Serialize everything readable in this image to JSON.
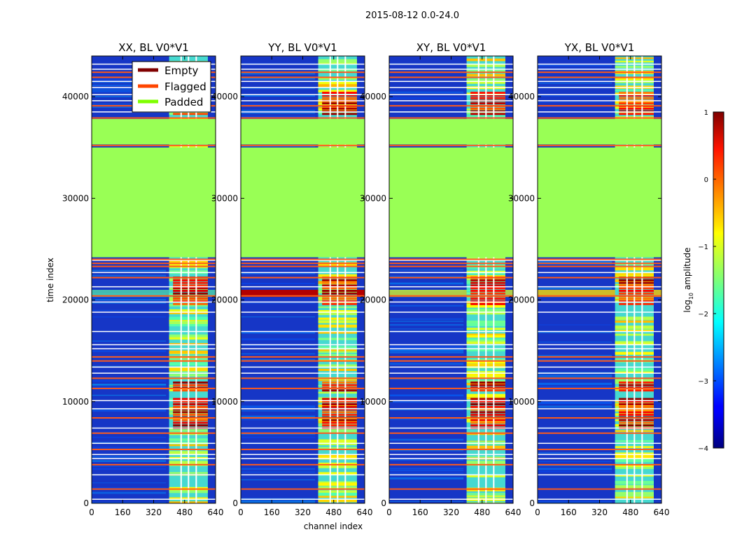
{
  "figure_title": "2015-08-12 0.0-24.0",
  "colors": {
    "background_blue": "#1636c6",
    "padded": "#99ff55",
    "flagged": "#ff5a1a",
    "empty": "#800000",
    "legend_padded_line": "#7fff00"
  },
  "legend": {
    "entries": [
      {
        "label": "Empty",
        "color": "#800000"
      },
      {
        "label": "Flagged",
        "color": "#ff4500"
      },
      {
        "label": "Padded",
        "color": "#7fff00"
      }
    ]
  },
  "colorbar": {
    "label_parts": [
      "log",
      "10",
      " amplitude"
    ],
    "ticks": [
      "1",
      "0",
      "−1",
      "−2",
      "−3",
      "−4"
    ],
    "tick_values": [
      1,
      0,
      -1,
      -2,
      -3,
      -4
    ],
    "range": [
      -4,
      1
    ]
  },
  "chart_data": {
    "type": "heatmap",
    "x_range": [
      0,
      640
    ],
    "y_range": [
      0,
      44000
    ],
    "x_ticks": [
      "0",
      "160",
      "320",
      "480",
      "640"
    ],
    "x_tick_values": [
      0,
      160,
      320,
      480,
      640
    ],
    "y_ticks": [
      "0",
      "10000",
      "20000",
      "30000",
      "40000"
    ],
    "y_tick_values": [
      0,
      10000,
      20000,
      30000,
      40000
    ],
    "xlabel": "channel index",
    "ylabel": "time index",
    "panels": [
      {
        "title": "XX, BL V0*V1",
        "rfi_low_channel_intensity": 0.25
      },
      {
        "title": "YY, BL V0*V1",
        "rfi_low_channel_intensity": 1.0
      },
      {
        "title": "XY, BL V0*V1",
        "rfi_low_channel_intensity": 0.45
      },
      {
        "title": "YX, BL V0*V1",
        "rfi_low_channel_intensity": 0.55
      }
    ],
    "padded_time_ranges": [
      [
        24200,
        35000
      ],
      [
        35300,
        37800
      ]
    ],
    "flagged_time_rows": [
      1400,
      3800,
      5300,
      6900,
      8400,
      11300,
      12300,
      14000,
      14400,
      20400,
      22200,
      23300,
      23600,
      24000,
      35200,
      37900,
      39100,
      41900,
      42400
    ],
    "white_time_rows": [
      400,
      2800,
      4400,
      4800,
      5900,
      7400,
      9300,
      10100,
      12800,
      13400,
      15200,
      15600,
      16900,
      18800,
      19800,
      21300,
      22700,
      23900,
      38500,
      39600,
      40200,
      40900,
      41500,
      42700,
      43200
    ],
    "rfi_channel_band": [
      400,
      600
    ],
    "rfi_channel_gaps": [
      462,
      500,
      540
    ],
    "rfi_strong_time_ranges": [
      [
        19500,
        22300
      ],
      [
        7300,
        10200
      ],
      [
        11000,
        12000
      ],
      [
        38200,
        40300
      ]
    ]
  }
}
